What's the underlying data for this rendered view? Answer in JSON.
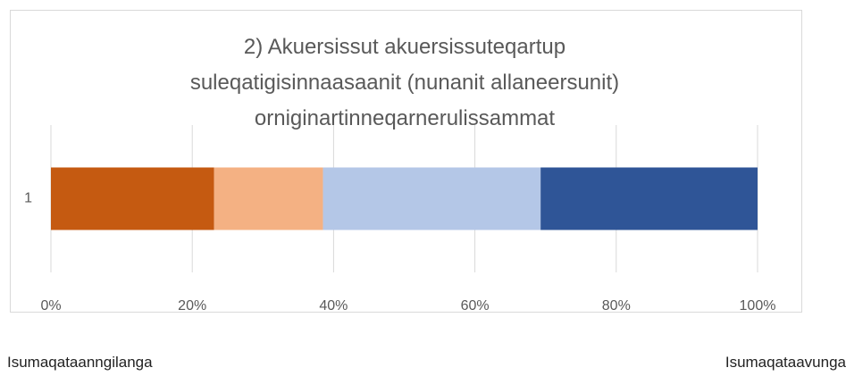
{
  "chart_data": {
    "type": "stacked_barh",
    "title": "2) Akuersissut akuersissuteqartup suleqatigisinnaasaanit (nunanit allaneersunit) orniginartinneqarnerulissammat",
    "categories": [
      "1"
    ],
    "series": [
      {
        "color": "#c55a11",
        "values": [
          23.1
        ]
      },
      {
        "color": "#f4b183",
        "values": [
          15.4
        ]
      },
      {
        "color": "#b4c7e7",
        "values": [
          30.8
        ]
      },
      {
        "color": "#2f5597",
        "values": [
          30.7
        ]
      }
    ],
    "xlim": [
      0,
      100
    ],
    "xticks": [
      {
        "value": 0,
        "label": "0%"
      },
      {
        "value": 20,
        "label": "20%"
      },
      {
        "value": 40,
        "label": "40%"
      },
      {
        "value": 60,
        "label": "60%"
      },
      {
        "value": 80,
        "label": "80%"
      },
      {
        "value": 100,
        "label": "100%"
      }
    ],
    "grid": true,
    "annotations": [
      "Isumaqataanngilanga",
      "Isumaqataavunga"
    ]
  }
}
